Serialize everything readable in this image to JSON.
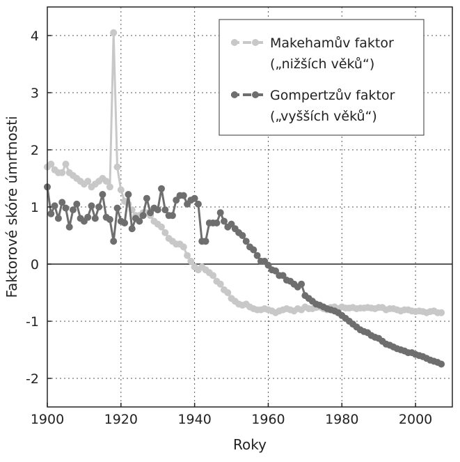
{
  "chart_data": {
    "type": "line",
    "xlabel": "Roky",
    "ylabel": "Faktorové skóre úmrtnosti",
    "xlim": [
      1900,
      2010
    ],
    "ylim": [
      -2.5,
      4.5
    ],
    "xticks": [
      "1900",
      "1920",
      "1940",
      "1960",
      "1980",
      "2000"
    ],
    "yticks": [
      "4",
      "3",
      "2",
      "1",
      "0",
      "-1",
      "-2"
    ],
    "grid": true,
    "legend_position": "top-right",
    "series": [
      {
        "name": "Makehamův faktor",
        "name_line2": "(„nižších věků“)",
        "color": "#c8c8c8",
        "x": [
          1900,
          1901,
          1902,
          1903,
          1904,
          1905,
          1906,
          1907,
          1908,
          1909,
          1910,
          1911,
          1912,
          1913,
          1914,
          1915,
          1916,
          1917,
          1918,
          1919,
          1920,
          1921,
          1922,
          1923,
          1924,
          1925,
          1926,
          1927,
          1928,
          1929,
          1930,
          1931,
          1932,
          1933,
          1934,
          1935,
          1936,
          1937,
          1938,
          1939,
          1940,
          1941,
          1942,
          1943,
          1944,
          1945,
          1946,
          1947,
          1948,
          1949,
          1950,
          1951,
          1952,
          1953,
          1954,
          1955,
          1956,
          1957,
          1958,
          1959,
          1960,
          1961,
          1962,
          1963,
          1964,
          1965,
          1966,
          1967,
          1968,
          1969,
          1970,
          1971,
          1972,
          1973,
          1974,
          1975,
          1976,
          1977,
          1978,
          1979,
          1980,
          1981,
          1982,
          1983,
          1984,
          1985,
          1986,
          1987,
          1988,
          1989,
          1990,
          1991,
          1992,
          1993,
          1994,
          1995,
          1996,
          1997,
          1998,
          1999,
          2000,
          2001,
          2002,
          2003,
          2004,
          2005,
          2006,
          2007
        ],
        "values": [
          1.7,
          1.75,
          1.65,
          1.6,
          1.6,
          1.75,
          1.6,
          1.55,
          1.5,
          1.45,
          1.4,
          1.45,
          1.35,
          1.4,
          1.45,
          1.5,
          1.45,
          1.35,
          4.05,
          1.7,
          1.3,
          1.1,
          1.05,
          0.95,
          0.85,
          0.85,
          0.9,
          0.9,
          0.85,
          0.75,
          0.7,
          0.65,
          0.55,
          0.45,
          0.4,
          0.35,
          0.35,
          0.3,
          0.15,
          0.05,
          -0.05,
          -0.1,
          -0.05,
          -0.1,
          -0.15,
          -0.2,
          -0.3,
          -0.35,
          -0.45,
          -0.5,
          -0.6,
          -0.65,
          -0.7,
          -0.72,
          -0.7,
          -0.75,
          -0.78,
          -0.8,
          -0.8,
          -0.78,
          -0.8,
          -0.82,
          -0.85,
          -0.82,
          -0.8,
          -0.78,
          -0.8,
          -0.82,
          -0.78,
          -0.8,
          -0.75,
          -0.78,
          -0.78,
          -0.76,
          -0.75,
          -0.78,
          -0.8,
          -0.76,
          -0.75,
          -0.78,
          -0.75,
          -0.77,
          -0.77,
          -0.76,
          -0.78,
          -0.77,
          -0.77,
          -0.76,
          -0.77,
          -0.78,
          -0.76,
          -0.76,
          -0.8,
          -0.78,
          -0.78,
          -0.8,
          -0.82,
          -0.8,
          -0.8,
          -0.82,
          -0.83,
          -0.82,
          -0.83,
          -0.85,
          -0.83,
          -0.82,
          -0.85,
          -0.85
        ]
      },
      {
        "name": "Gompertzův faktor",
        "name_line2": "(„vyšších věků“)",
        "color": "#6e6e6e",
        "x": [
          1900,
          1901,
          1902,
          1903,
          1904,
          1905,
          1906,
          1907,
          1908,
          1909,
          1910,
          1911,
          1912,
          1913,
          1914,
          1915,
          1916,
          1917,
          1918,
          1919,
          1920,
          1921,
          1922,
          1923,
          1924,
          1925,
          1926,
          1927,
          1928,
          1929,
          1930,
          1931,
          1932,
          1933,
          1934,
          1935,
          1936,
          1937,
          1938,
          1939,
          1940,
          1941,
          1942,
          1943,
          1944,
          1945,
          1946,
          1947,
          1948,
          1949,
          1950,
          1951,
          1952,
          1953,
          1954,
          1955,
          1956,
          1957,
          1958,
          1959,
          1960,
          1961,
          1962,
          1963,
          1964,
          1965,
          1966,
          1967,
          1968,
          1969,
          1970,
          1971,
          1972,
          1973,
          1974,
          1975,
          1976,
          1977,
          1978,
          1979,
          1980,
          1981,
          1982,
          1983,
          1984,
          1985,
          1986,
          1987,
          1988,
          1989,
          1990,
          1991,
          1992,
          1993,
          1994,
          1995,
          1996,
          1997,
          1998,
          1999,
          2000,
          2001,
          2002,
          2003,
          2004,
          2005,
          2006,
          2007
        ],
        "values": [
          1.35,
          0.88,
          1.02,
          0.8,
          1.08,
          0.98,
          0.65,
          0.95,
          1.05,
          0.8,
          0.75,
          0.82,
          1.02,
          0.8,
          1.0,
          1.22,
          0.82,
          0.78,
          0.4,
          0.98,
          0.75,
          0.72,
          1.22,
          0.62,
          0.8,
          0.75,
          0.85,
          1.15,
          0.9,
          0.98,
          0.95,
          1.32,
          0.95,
          0.85,
          0.85,
          1.12,
          1.2,
          1.2,
          1.05,
          1.12,
          1.15,
          1.05,
          0.4,
          0.4,
          0.72,
          0.72,
          0.72,
          0.9,
          0.75,
          0.65,
          0.7,
          0.62,
          0.55,
          0.5,
          0.4,
          0.3,
          0.25,
          0.15,
          0.05,
          0.05,
          -0.02,
          -0.1,
          -0.12,
          -0.2,
          -0.2,
          -0.28,
          -0.3,
          -0.35,
          -0.4,
          -0.35,
          -0.55,
          -0.6,
          -0.65,
          -0.7,
          -0.72,
          -0.75,
          -0.78,
          -0.8,
          -0.82,
          -0.85,
          -0.9,
          -0.95,
          -1.0,
          -1.05,
          -1.1,
          -1.15,
          -1.18,
          -1.2,
          -1.25,
          -1.28,
          -1.3,
          -1.35,
          -1.4,
          -1.42,
          -1.45,
          -1.48,
          -1.5,
          -1.52,
          -1.55,
          -1.55,
          -1.58,
          -1.6,
          -1.62,
          -1.65,
          -1.68,
          -1.7,
          -1.72,
          -1.75
        ]
      }
    ]
  }
}
